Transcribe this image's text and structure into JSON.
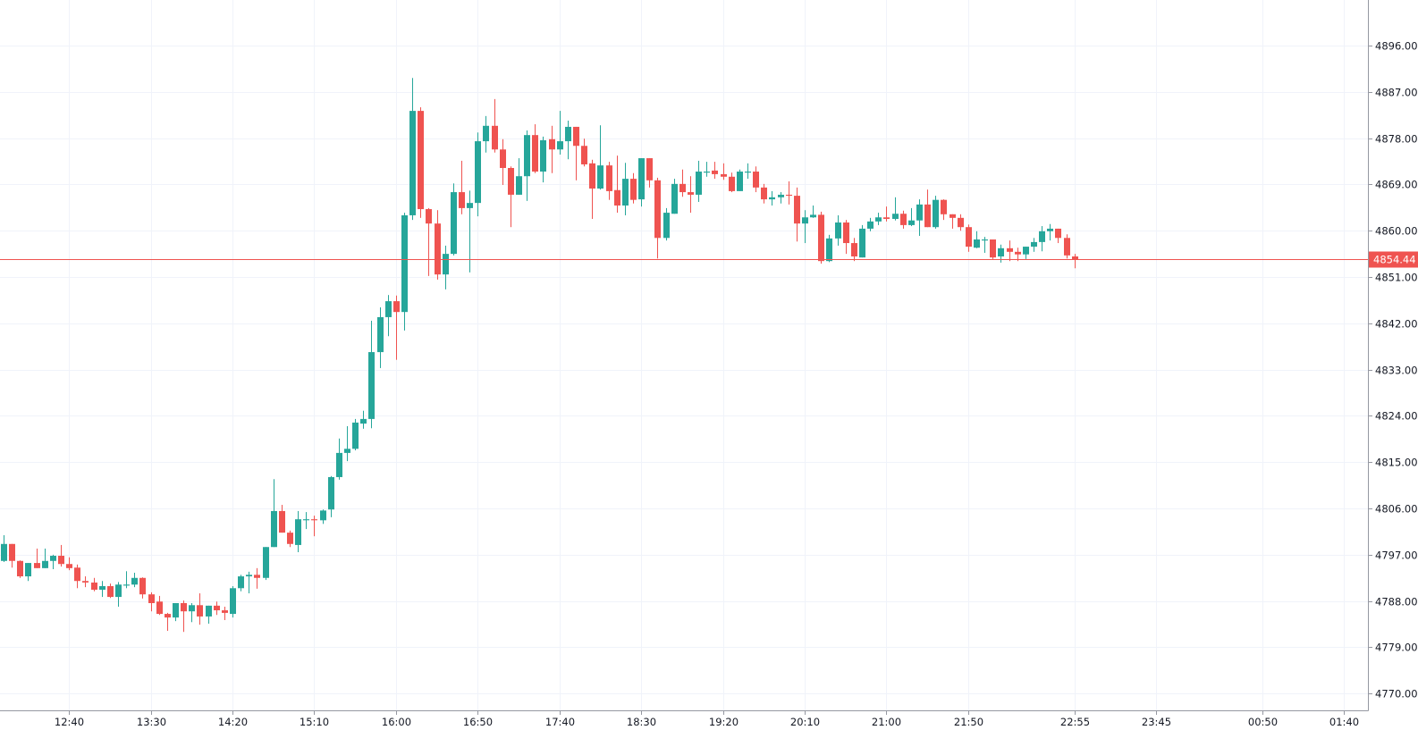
{
  "chart_data": {
    "type": "candlestick",
    "title": "",
    "xlabel": "",
    "ylabel": "",
    "ylim": [
      4766.75,
      4904.86
    ],
    "xlim_index": [
      -0.44,
      166.9
    ],
    "grid": true,
    "colors": {
      "up": "#26a69a",
      "down": "#ef5350",
      "grid": "#f0f3fa",
      "axis": "#9598a1",
      "text": "#131722",
      "last_price_line": "#ef5350"
    },
    "last_price": 4854.44,
    "last_price_label": "4854.44",
    "y_ticks": [
      {
        "value": 4896,
        "label": "4896.00"
      },
      {
        "value": 4887,
        "label": "4887.00"
      },
      {
        "value": 4878,
        "label": "4878.00"
      },
      {
        "value": 4869,
        "label": "4869.00"
      },
      {
        "value": 4860,
        "label": "4860.00"
      },
      {
        "value": 4851,
        "label": "4851.00"
      },
      {
        "value": 4842,
        "label": "4842.00"
      },
      {
        "value": 4833,
        "label": "4833.00"
      },
      {
        "value": 4824,
        "label": "4824.00"
      },
      {
        "value": 4815,
        "label": "4815.00"
      },
      {
        "value": 4806,
        "label": "4806.00"
      },
      {
        "value": 4797,
        "label": "4797.00"
      },
      {
        "value": 4788,
        "label": "4788.00"
      },
      {
        "value": 4779,
        "label": "4779.00"
      },
      {
        "value": 4770,
        "label": "4770.00"
      }
    ],
    "x_ticks": [
      {
        "index": 8,
        "label": "12:40"
      },
      {
        "index": 18,
        "label": "13:30"
      },
      {
        "index": 28,
        "label": "14:20"
      },
      {
        "index": 38,
        "label": "15:10"
      },
      {
        "index": 48,
        "label": "16:00"
      },
      {
        "index": 58,
        "label": "16:50"
      },
      {
        "index": 68,
        "label": "17:40"
      },
      {
        "index": 78,
        "label": "18:30"
      },
      {
        "index": 88,
        "label": "19:20"
      },
      {
        "index": 98,
        "label": "20:10"
      },
      {
        "index": 108,
        "label": "21:00"
      },
      {
        "index": 118,
        "label": "21:50"
      },
      {
        "index": 131,
        "label": "22:55"
      },
      {
        "index": 141,
        "label": "23:45"
      },
      {
        "index": 154,
        "label": "00:50"
      },
      {
        "index": 164,
        "label": "01:40"
      }
    ],
    "ohlc_fields": [
      "open",
      "high",
      "low",
      "close"
    ],
    "candles": [
      [
        4795.8,
        4800.8,
        4795.6,
        4799.1
      ],
      [
        4799.1,
        4799.1,
        4794.5,
        4795.8
      ],
      [
        4795.8,
        4795.9,
        4792.5,
        4792.8
      ],
      [
        4792.8,
        4795.4,
        4791.9,
        4795.4
      ],
      [
        4795.4,
        4798.2,
        4794.4,
        4794.4
      ],
      [
        4794.4,
        4798.2,
        4794.4,
        4795.8
      ],
      [
        4795.8,
        4797.0,
        4794.2,
        4796.8
      ],
      [
        4796.8,
        4798.9,
        4794.7,
        4795.2
      ],
      [
        4795.2,
        4796.5,
        4794.0,
        4794.4
      ],
      [
        4794.5,
        4795.1,
        4790.5,
        4791.9
      ],
      [
        4791.9,
        4792.8,
        4790.7,
        4791.6
      ],
      [
        4791.6,
        4792.5,
        4789.9,
        4790.2
      ],
      [
        4790.2,
        4791.9,
        4788.8,
        4790.9
      ],
      [
        4790.9,
        4791.4,
        4788.6,
        4788.8
      ],
      [
        4788.8,
        4791.7,
        4786.9,
        4791.2
      ],
      [
        4791.0,
        4793.8,
        4790.5,
        4791.2
      ],
      [
        4791.2,
        4793.5,
        4790.7,
        4792.5
      ],
      [
        4792.5,
        4792.6,
        4788.5,
        4789.3
      ],
      [
        4789.3,
        4789.7,
        4786.0,
        4787.6
      ],
      [
        4787.9,
        4789.0,
        4785.3,
        4785.5
      ],
      [
        4785.5,
        4785.7,
        4782.2,
        4784.8
      ],
      [
        4784.8,
        4787.6,
        4784.1,
        4787.6
      ],
      [
        4787.6,
        4788.1,
        4782.0,
        4786.0
      ],
      [
        4786.0,
        4787.6,
        4783.9,
        4787.2
      ],
      [
        4787.2,
        4789.5,
        4783.4,
        4785.0
      ],
      [
        4785.0,
        4787.1,
        4783.6,
        4787.1
      ],
      [
        4787.1,
        4787.9,
        4785.3,
        4786.2
      ],
      [
        4786.2,
        4786.9,
        4784.3,
        4785.7
      ],
      [
        4785.5,
        4790.9,
        4784.8,
        4790.5
      ],
      [
        4790.5,
        4793.1,
        4789.9,
        4792.8
      ],
      [
        4792.8,
        4793.7,
        4789.5,
        4793.1
      ],
      [
        4793.1,
        4794.4,
        4790.4,
        4792.5
      ],
      [
        4792.5,
        4798.5,
        4792.1,
        4798.5
      ],
      [
        4798.5,
        4811.7,
        4798.5,
        4805.5
      ],
      [
        4805.5,
        4806.7,
        4801.3,
        4801.3
      ],
      [
        4801.3,
        4801.7,
        4798.5,
        4799.1
      ],
      [
        4798.9,
        4805.5,
        4797.5,
        4803.9
      ],
      [
        4803.7,
        4805.3,
        4802.0,
        4803.9
      ],
      [
        4803.9,
        4804.6,
        4800.6,
        4803.7
      ],
      [
        4803.7,
        4805.8,
        4803.0,
        4805.6
      ],
      [
        4805.8,
        4812.3,
        4804.3,
        4812.1
      ],
      [
        4812.1,
        4819.6,
        4811.6,
        4816.8
      ],
      [
        4816.8,
        4822.0,
        4815.2,
        4817.6
      ],
      [
        4817.6,
        4823.4,
        4817.3,
        4822.7
      ],
      [
        4822.5,
        4825.0,
        4821.5,
        4823.4
      ],
      [
        4823.4,
        4842.5,
        4821.6,
        4836.4
      ],
      [
        4836.4,
        4845.1,
        4833.3,
        4843.2
      ],
      [
        4843.2,
        4847.5,
        4839.5,
        4846.3
      ],
      [
        4846.3,
        4847.4,
        4834.9,
        4844.2
      ],
      [
        4844.2,
        4863.5,
        4840.6,
        4863.0
      ],
      [
        4863.0,
        4889.7,
        4862.1,
        4883.3
      ],
      [
        4883.3,
        4884.0,
        4862.5,
        4864.2
      ],
      [
        4864.2,
        4864.4,
        4851.2,
        4861.4
      ],
      [
        4861.4,
        4864.0,
        4850.5,
        4851.5
      ],
      [
        4851.5,
        4857.1,
        4848.6,
        4855.5
      ],
      [
        4855.5,
        4869.2,
        4855.2,
        4867.5
      ],
      [
        4867.5,
        4873.6,
        4863.2,
        4864.4
      ],
      [
        4864.4,
        4867.8,
        4851.9,
        4865.4
      ],
      [
        4865.4,
        4879.1,
        4862.8,
        4877.4
      ],
      [
        4877.4,
        4882.3,
        4875.2,
        4880.4
      ],
      [
        4880.4,
        4885.6,
        4875.2,
        4875.8
      ],
      [
        4875.8,
        4877.8,
        4868.9,
        4872.2
      ],
      [
        4872.2,
        4872.5,
        4860.7,
        4867.0
      ],
      [
        4867.0,
        4874.1,
        4867.0,
        4870.6
      ],
      [
        4870.6,
        4879.5,
        4865.8,
        4878.6
      ],
      [
        4878.6,
        4880.7,
        4871.2,
        4871.5
      ],
      [
        4871.5,
        4878.3,
        4869.4,
        4877.6
      ],
      [
        4877.8,
        4880.4,
        4871.2,
        4875.8
      ],
      [
        4875.8,
        4883.3,
        4874.8,
        4877.4
      ],
      [
        4877.4,
        4881.4,
        4873.9,
        4880.2
      ],
      [
        4880.2,
        4880.2,
        4869.8,
        4876.5
      ],
      [
        4876.5,
        4877.9,
        4872.5,
        4872.9
      ],
      [
        4873.1,
        4873.8,
        4862.3,
        4868.2
      ],
      [
        4868.2,
        4880.5,
        4868.0,
        4872.7
      ],
      [
        4872.7,
        4873.4,
        4866.0,
        4867.7
      ],
      [
        4867.9,
        4874.6,
        4863.5,
        4864.9
      ],
      [
        4864.9,
        4873.2,
        4863.0,
        4870.1
      ],
      [
        4870.1,
        4871.2,
        4865.3,
        4866.0
      ],
      [
        4866.1,
        4874.1,
        4864.7,
        4874.1
      ],
      [
        4874.1,
        4874.1,
        4868.4,
        4869.8
      ],
      [
        4869.8,
        4870.3,
        4854.6,
        4858.6
      ],
      [
        4858.6,
        4864.4,
        4858.1,
        4863.5
      ],
      [
        4863.3,
        4870.1,
        4863.3,
        4869.1
      ],
      [
        4869.1,
        4871.9,
        4866.6,
        4867.5
      ],
      [
        4867.5,
        4870.6,
        4863.5,
        4867.0
      ],
      [
        4867.0,
        4873.6,
        4865.6,
        4871.5
      ],
      [
        4871.3,
        4873.4,
        4870.5,
        4871.5
      ],
      [
        4871.7,
        4873.4,
        4870.1,
        4871.0
      ],
      [
        4871.0,
        4873.1,
        4869.9,
        4870.5
      ],
      [
        4870.5,
        4871.3,
        4867.5,
        4867.7
      ],
      [
        4867.7,
        4871.9,
        4867.7,
        4871.5
      ],
      [
        4871.3,
        4873.1,
        4870.1,
        4871.5
      ],
      [
        4871.5,
        4872.5,
        4867.5,
        4868.4
      ],
      [
        4868.4,
        4869.1,
        4865.3,
        4866.1
      ],
      [
        4866.1,
        4867.7,
        4864.9,
        4866.5
      ],
      [
        4866.5,
        4867.5,
        4865.3,
        4867.0
      ],
      [
        4867.0,
        4869.6,
        4865.1,
        4866.8
      ],
      [
        4866.8,
        4868.4,
        4857.9,
        4861.4
      ],
      [
        4861.4,
        4864.0,
        4857.6,
        4862.6
      ],
      [
        4862.6,
        4864.9,
        4862.5,
        4863.1
      ],
      [
        4863.1,
        4863.7,
        4853.6,
        4854.1
      ],
      [
        4854.1,
        4859.2,
        4853.9,
        4858.5
      ],
      [
        4858.5,
        4863.0,
        4857.1,
        4861.6
      ],
      [
        4861.6,
        4862.1,
        4855.5,
        4857.6
      ],
      [
        4857.6,
        4858.6,
        4854.1,
        4855.0
      ],
      [
        4854.8,
        4861.1,
        4854.8,
        4860.4
      ],
      [
        4860.4,
        4862.5,
        4859.9,
        4861.8
      ],
      [
        4861.8,
        4863.5,
        4861.1,
        4862.6
      ],
      [
        4862.6,
        4864.7,
        4861.8,
        4862.3
      ],
      [
        4862.3,
        4866.5,
        4862.0,
        4863.3
      ],
      [
        4863.3,
        4863.9,
        4860.4,
        4861.1
      ],
      [
        4861.1,
        4864.4,
        4860.9,
        4862.0
      ],
      [
        4862.0,
        4866.1,
        4859.0,
        4865.1
      ],
      [
        4865.1,
        4868.0,
        4860.7,
        4860.7
      ],
      [
        4860.7,
        4866.8,
        4860.4,
        4866.0
      ],
      [
        4866.0,
        4866.1,
        4862.1,
        4863.2
      ],
      [
        4863.2,
        4863.2,
        4860.4,
        4862.5
      ],
      [
        4862.5,
        4863.2,
        4860.0,
        4860.7
      ],
      [
        4860.7,
        4861.2,
        4855.9,
        4856.9
      ],
      [
        4856.7,
        4859.9,
        4856.6,
        4858.3
      ],
      [
        4858.1,
        4858.8,
        4855.7,
        4858.3
      ],
      [
        4858.3,
        4858.3,
        4854.5,
        4854.8
      ],
      [
        4855.0,
        4857.3,
        4853.8,
        4856.6
      ],
      [
        4856.6,
        4858.1,
        4854.1,
        4855.9
      ],
      [
        4855.9,
        4856.7,
        4854.1,
        4855.4
      ],
      [
        4855.4,
        4856.9,
        4854.5,
        4856.9
      ],
      [
        4856.9,
        4858.6,
        4855.9,
        4857.8
      ],
      [
        4857.8,
        4860.9,
        4856.0,
        4859.9
      ],
      [
        4859.9,
        4861.3,
        4858.1,
        4860.4
      ],
      [
        4860.4,
        4860.4,
        4857.6,
        4858.6
      ],
      [
        4858.6,
        4859.3,
        4854.6,
        4855.2
      ],
      [
        4855.0,
        4855.5,
        4852.7,
        4854.44
      ]
    ]
  }
}
